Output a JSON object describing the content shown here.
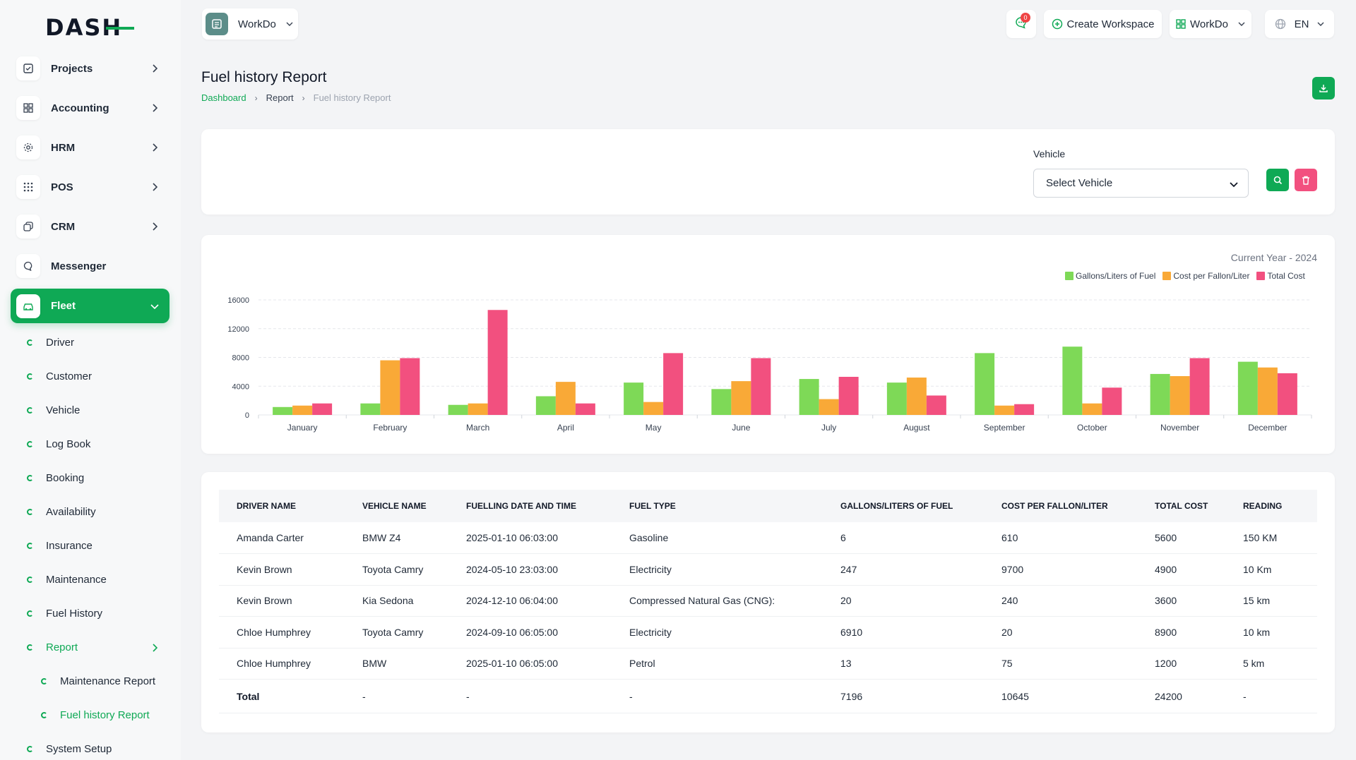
{
  "brand": {
    "logo_text": "DASH"
  },
  "sidebar": {
    "items": [
      {
        "label": "Projects",
        "icon": "check-square-icon"
      },
      {
        "label": "Accounting",
        "icon": "grid-icon"
      },
      {
        "label": "HRM",
        "icon": "hrm-icon"
      },
      {
        "label": "POS",
        "icon": "dots-grid-icon"
      },
      {
        "label": "CRM",
        "icon": "copy-icon"
      },
      {
        "label": "Messenger",
        "icon": "chat-icon"
      },
      {
        "label": "Fleet",
        "icon": "car-icon"
      }
    ],
    "fleet_items": [
      "Driver",
      "Customer",
      "Vehicle",
      "Log Book",
      "Booking",
      "Availability",
      "Insurance",
      "Maintenance",
      "Fuel History",
      "Report"
    ],
    "report_items": [
      "Maintenance Report",
      "Fuel history Report"
    ],
    "system_setup": "System Setup"
  },
  "topbar": {
    "workspace_name": "WorkDo",
    "notification_count": "0",
    "create_workspace": "Create Workspace",
    "workspace_menu": "WorkDo",
    "language": "EN"
  },
  "page": {
    "title": "Fuel history Report",
    "breadcrumb": [
      "Dashboard",
      "Report",
      "Fuel history Report"
    ]
  },
  "filter": {
    "label": "Vehicle",
    "select_value": "Select Vehicle"
  },
  "chart_data": {
    "type": "bar",
    "subtitle": "Current Year - 2024",
    "categories": [
      "January",
      "February",
      "March",
      "April",
      "May",
      "June",
      "July",
      "August",
      "September",
      "October",
      "November",
      "December"
    ],
    "series": [
      {
        "name": "Gallons/Liters of Fuel",
        "color": "#7ed957",
        "values": [
          1100,
          1600,
          1400,
          2600,
          4500,
          3600,
          5000,
          4500,
          8600,
          9500,
          5700,
          7400
        ]
      },
      {
        "name": "Cost per Fallon/Liter",
        "color": "#f9a937",
        "values": [
          1300,
          7600,
          1600,
          4600,
          1800,
          4700,
          2200,
          5200,
          1300,
          1600,
          5400,
          6600
        ]
      },
      {
        "name": "Total Cost",
        "color": "#f2507f",
        "values": [
          1600,
          7900,
          14600,
          1600,
          8600,
          7900,
          5300,
          2700,
          1500,
          3800,
          7900,
          5800
        ]
      }
    ],
    "yticks": [
      0,
      4000,
      8000,
      12000,
      16000
    ],
    "ylim": [
      0,
      16000
    ],
    "legend": "top-right",
    "grid": true
  },
  "table": {
    "headers": [
      "Driver Name",
      "Vehicle Name",
      "Fuelling Date and Time",
      "Fuel Type",
      "Gallons/Liters of Fuel",
      "Cost per Fallon/Liter",
      "Total Cost",
      "Reading"
    ],
    "rows": [
      [
        "Amanda Carter",
        "BMW Z4",
        "2025-01-10 06:03:00",
        "Gasoline",
        "6",
        "610",
        "5600",
        "150 KM"
      ],
      [
        "Kevin Brown",
        "Toyota Camry",
        "2024-05-10 23:03:00",
        "Electricity",
        "247",
        "9700",
        "4900",
        "10 Km"
      ],
      [
        "Kevin Brown",
        "Kia Sedona",
        "2024-12-10 06:04:00",
        "Compressed Natural Gas (CNG):",
        "20",
        "240",
        "3600",
        "15 km"
      ],
      [
        "Chloe Humphrey",
        "Toyota Camry",
        "2024-09-10 06:05:00",
        "Electricity",
        "6910",
        "20",
        "8900",
        "10 km"
      ],
      [
        "Chloe Humphrey",
        "BMW",
        "2025-01-10 06:05:00",
        "Petrol",
        "13",
        "75",
        "1200",
        "5 km"
      ]
    ],
    "total": [
      "Total",
      "-",
      "-",
      "-",
      "7196",
      "10645",
      "24200",
      "-"
    ]
  }
}
